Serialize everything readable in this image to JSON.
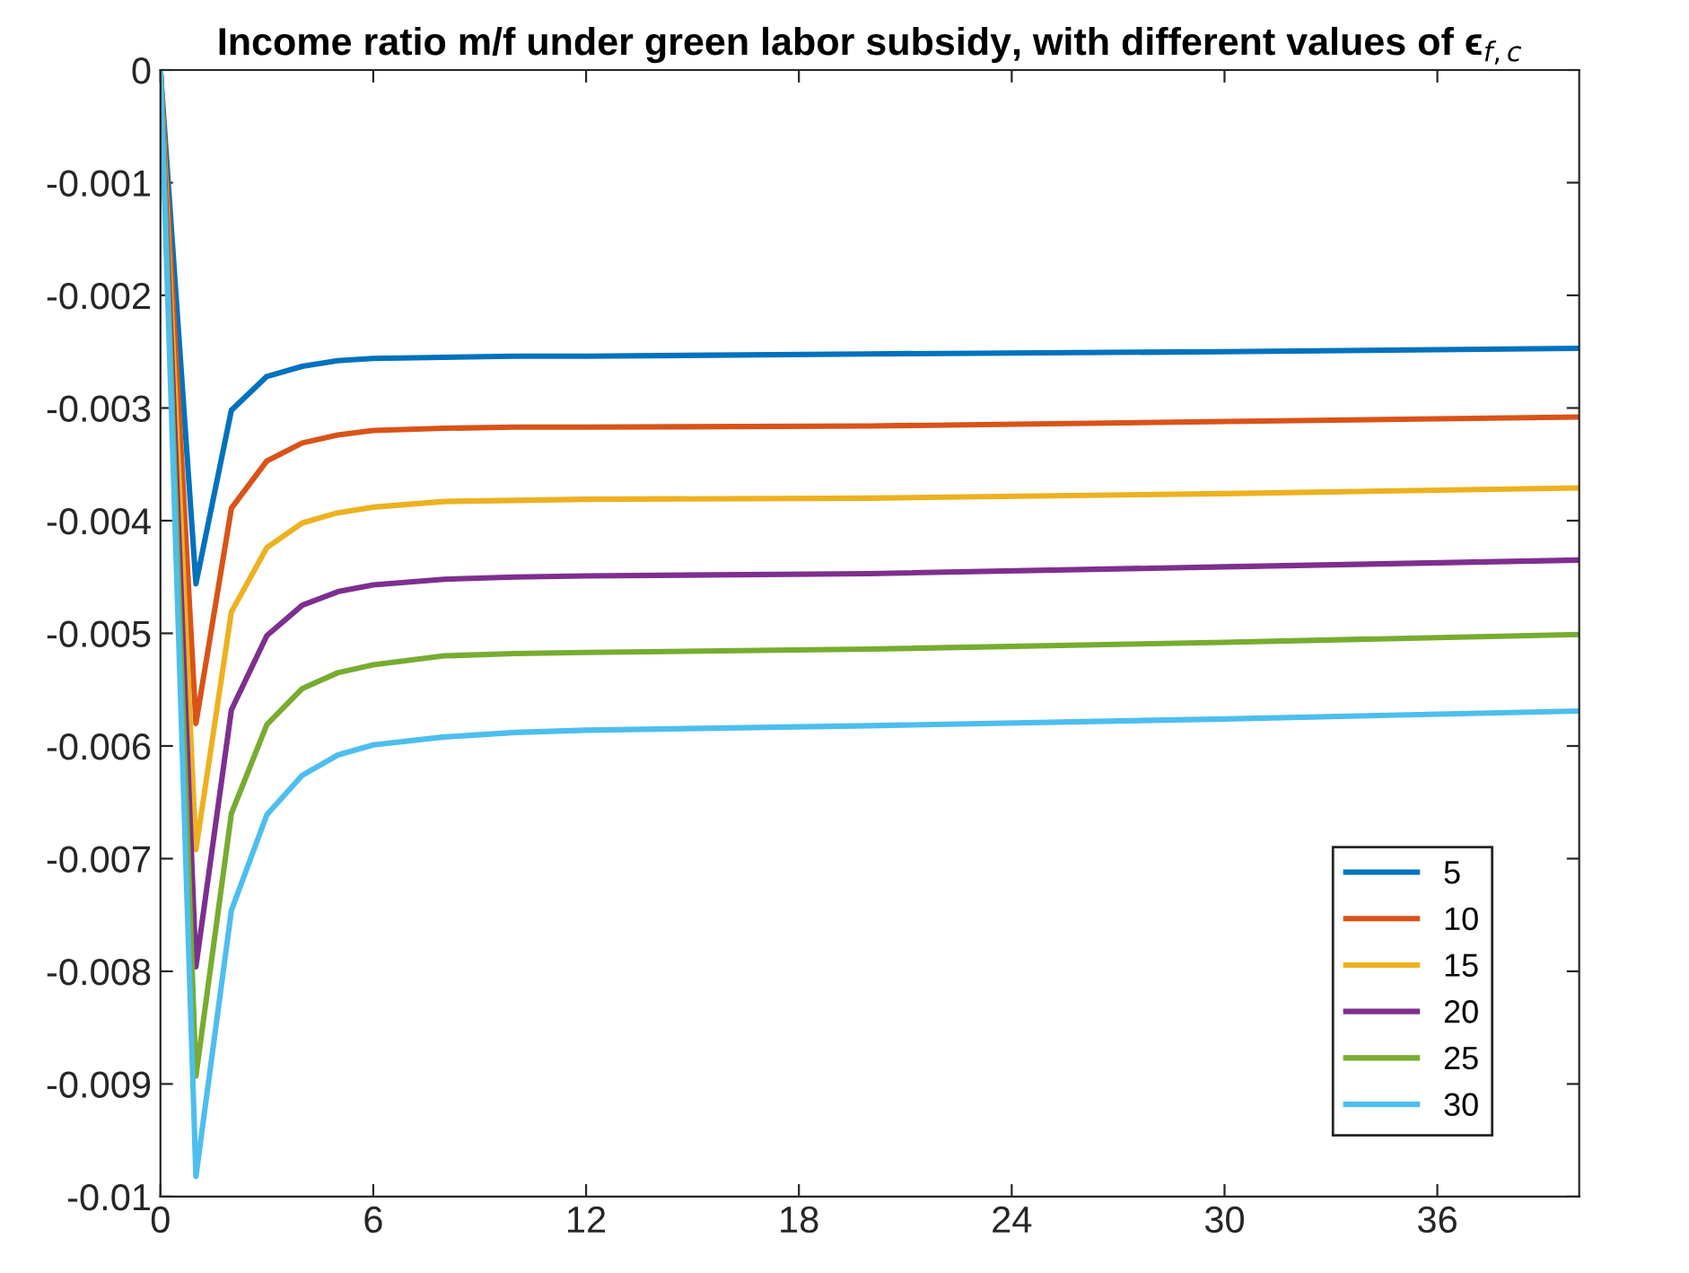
{
  "chart_data": {
    "type": "line",
    "title": "Income ratio m/f under green labor subsidy, with different values of ϵ$_{f,c}$",
    "x": [
      0,
      1,
      2,
      3,
      4,
      5,
      6,
      8,
      10,
      12,
      20,
      30,
      40
    ],
    "series": [
      {
        "name": "5",
        "color": "#0072bd",
        "values": [
          0,
          -0.00456,
          -0.00302,
          -0.00272,
          -0.00263,
          -0.00258,
          -0.00256,
          -0.00255,
          -0.00254,
          -0.00254,
          -0.00252,
          -0.0025,
          -0.00247
        ]
      },
      {
        "name": "10",
        "color": "#d95319",
        "values": [
          0,
          -0.0058,
          -0.00389,
          -0.00347,
          -0.00331,
          -0.00324,
          -0.0032,
          -0.00318,
          -0.00317,
          -0.00317,
          -0.00316,
          -0.00312,
          -0.00308
        ]
      },
      {
        "name": "15",
        "color": "#edb120",
        "values": [
          0,
          -0.00692,
          -0.00481,
          -0.00424,
          -0.00402,
          -0.00393,
          -0.00388,
          -0.00383,
          -0.00382,
          -0.00381,
          -0.0038,
          -0.00376,
          -0.00371
        ]
      },
      {
        "name": "20",
        "color": "#7e2f8e",
        "values": [
          0,
          -0.00796,
          -0.00568,
          -0.00502,
          -0.00475,
          -0.00463,
          -0.00457,
          -0.00452,
          -0.0045,
          -0.00449,
          -0.00447,
          -0.00441,
          -0.00435
        ]
      },
      {
        "name": "25",
        "color": "#77ac30",
        "values": [
          0,
          -0.00893,
          -0.0066,
          -0.00581,
          -0.00549,
          -0.00535,
          -0.00528,
          -0.0052,
          -0.00518,
          -0.00517,
          -0.00514,
          -0.00508,
          -0.00501
        ]
      },
      {
        "name": "30",
        "color": "#4dbeee",
        "values": [
          0,
          -0.00982,
          -0.00746,
          -0.00661,
          -0.00626,
          -0.00608,
          -0.00599,
          -0.00592,
          -0.00588,
          -0.00586,
          -0.00582,
          -0.00576,
          -0.00569
        ]
      }
    ],
    "xlim": [
      0,
      40
    ],
    "xticks": [
      0,
      6,
      12,
      18,
      24,
      30,
      36
    ],
    "ylim": [
      -0.01,
      0
    ],
    "yticks": [
      {
        "value": -0.01,
        "label": "-0.01"
      },
      {
        "value": -0.009,
        "label": "-0.009"
      },
      {
        "value": -0.008,
        "label": "-0.008"
      },
      {
        "value": -0.007,
        "label": "-0.007"
      },
      {
        "value": -0.006,
        "label": "-0.006"
      },
      {
        "value": -0.005,
        "label": "-0.005"
      },
      {
        "value": -0.004,
        "label": "-0.004"
      },
      {
        "value": -0.003,
        "label": "-0.003"
      },
      {
        "value": -0.002,
        "label": "-0.002"
      },
      {
        "value": -0.001,
        "label": "-0.001"
      },
      0
    ],
    "legend": "bottom right",
    "grid": false,
    "marker": "none",
    "line_style": "solid"
  }
}
